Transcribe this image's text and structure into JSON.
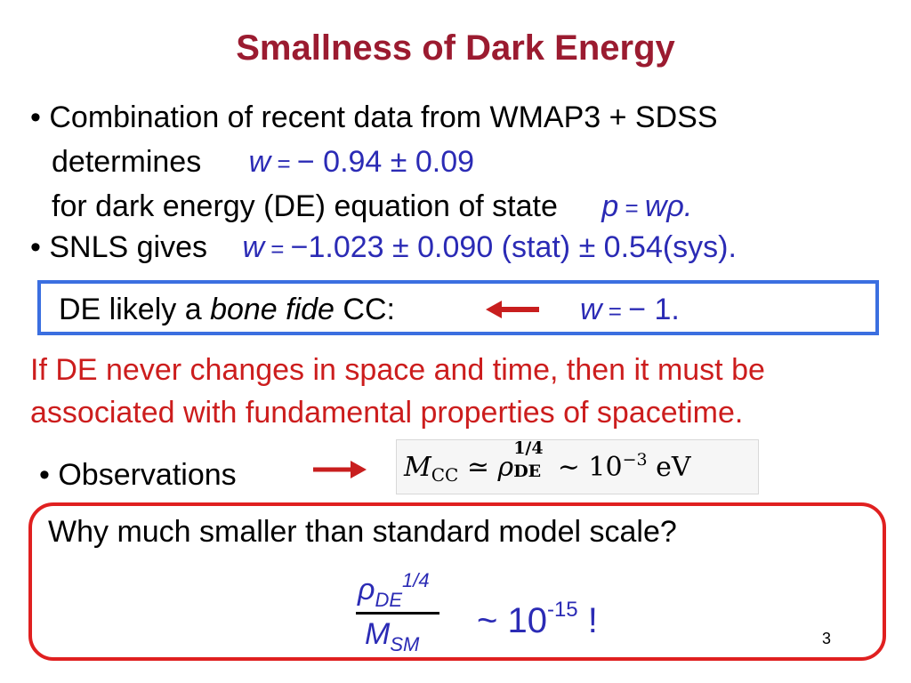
{
  "title": "Smallness of Dark Energy",
  "bullet1": {
    "line1": "• Combination of recent data from WMAP3 + SDSS",
    "line2_text": "determines",
    "line2_w": "w",
    "line2_eq": " = ",
    "line2_val": "− 0.94 ± 0.09",
    "line3_text": "for dark energy (DE) equation of state",
    "line3_p": "p",
    "line3_eq": " = ",
    "line3_wrho": "wρ."
  },
  "bullet2": {
    "text": "• SNLS gives",
    "w": "w",
    "eq": " = ",
    "val": "−1.023 ± 0.090 (stat) ± 0.54(sys)."
  },
  "blue_box": {
    "text_start": "DE likely a ",
    "italic": "bone fide",
    "text_end": " CC:",
    "w": "w",
    "eq": " = ",
    "val": "− 1."
  },
  "red_statement": {
    "line1": "If DE never changes in space and time, then it must be",
    "line2": "associated with fundamental properties of spacetime."
  },
  "observations": {
    "label": "• Observations",
    "formula": {
      "M": "M",
      "CC": "CC",
      "approx": " ≃ ",
      "rho": "ρ",
      "exp": "1/4",
      "DE": "DE",
      "sim": " ∼ ",
      "ten": "10",
      "pow": "−3",
      "unit": " eV"
    }
  },
  "red_box": {
    "question": "Why much smaller than standard model scale?",
    "num_rho": "ρ",
    "num_sub": "DE",
    "num_sup": "1/4",
    "den_M": "M",
    "den_sub": "SM",
    "sim": "~ 10",
    "pow": "-15",
    "bang": " !"
  },
  "page_number": "3",
  "colors": {
    "title": "#9b1b30",
    "blue_text": "#2b2bb5",
    "red_text": "#cc1d1d",
    "blue_border": "#3b6fe0",
    "red_border": "#e02020",
    "arrow": "#c81e1e"
  }
}
